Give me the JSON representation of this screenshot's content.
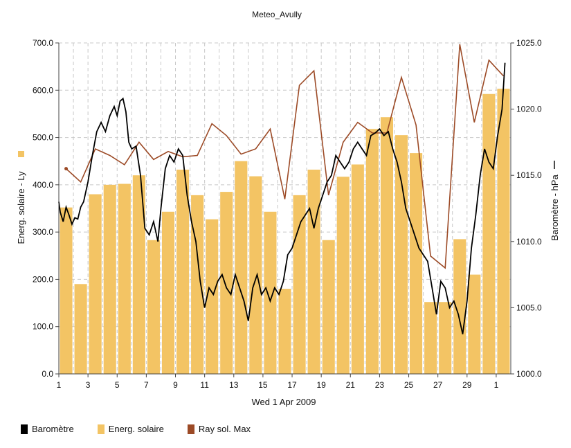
{
  "colors": {
    "bar": "#f3c464",
    "bar_edge": "#e8b24a",
    "barometer": "#000000",
    "ray": "#9c4a26",
    "grid": "#c8c8c8"
  },
  "chart_data": {
    "type": "bar",
    "title": "Meteo_Avully",
    "xlabel": "Wed 1 Apr 2009",
    "ylabel": "Energ. solaire - Ly",
    "y2label": "Baromètre - hPa",
    "ylim": [
      0,
      700
    ],
    "y2lim": [
      1000,
      1025
    ],
    "yticks": [
      "0.0",
      "100.0",
      "200.0",
      "300.0",
      "400.0",
      "500.0",
      "600.0",
      "700.0"
    ],
    "y2ticks": [
      "1000.0",
      "1005.0",
      "1010.0",
      "1015.0",
      "1020.0",
      "1025.0"
    ],
    "xticks": [
      "1",
      "3",
      "5",
      "7",
      "9",
      "11",
      "13",
      "15",
      "17",
      "19",
      "21",
      "23",
      "25",
      "27",
      "29",
      "1"
    ],
    "grid": true,
    "legend_position": "bottom-left",
    "series": [
      {
        "name": "Baromètre",
        "axis": "right",
        "kind": "line",
        "x": [
          1.0,
          1.1,
          1.3,
          1.5,
          1.7,
          1.9,
          2.1,
          2.3,
          2.5,
          2.7,
          3.0,
          3.3,
          3.6,
          3.9,
          4.2,
          4.5,
          4.8,
          5.0,
          5.2,
          5.4,
          5.6,
          5.8,
          6.0,
          6.3,
          6.6,
          6.9,
          7.2,
          7.5,
          7.8,
          8.0,
          8.3,
          8.6,
          8.9,
          9.2,
          9.5,
          9.8,
          10.1,
          10.4,
          10.7,
          11.0,
          11.3,
          11.6,
          11.9,
          12.2,
          12.5,
          12.8,
          13.1,
          13.4,
          13.7,
          14.0,
          14.3,
          14.6,
          14.9,
          15.2,
          15.5,
          15.8,
          16.1,
          16.4,
          16.7,
          17.0,
          17.3,
          17.6,
          17.9,
          18.2,
          18.5,
          18.8,
          19.1,
          19.4,
          19.7,
          20.0,
          20.3,
          20.6,
          20.9,
          21.2,
          21.5,
          21.8,
          22.1,
          22.4,
          22.7,
          23.0,
          23.3,
          23.6,
          23.9,
          24.2,
          24.5,
          24.8,
          25.1,
          25.4,
          25.7,
          26.0,
          26.3,
          26.6,
          26.9,
          27.2,
          27.5,
          27.8,
          28.1,
          28.4,
          28.7,
          29.0,
          29.3,
          29.6,
          29.9,
          30.2,
          30.5,
          30.8,
          31.1,
          31.4,
          31.6
        ],
        "values": [
          1013.0,
          1012.2,
          1011.5,
          1012.6,
          1012.0,
          1011.3,
          1011.8,
          1011.7,
          1012.6,
          1013.0,
          1014.5,
          1016.5,
          1018.3,
          1019.0,
          1018.3,
          1019.5,
          1020.2,
          1019.5,
          1020.6,
          1020.8,
          1019.8,
          1017.5,
          1017.0,
          1017.2,
          1015.0,
          1011.0,
          1010.5,
          1011.5,
          1010.0,
          1012.5,
          1015.5,
          1016.5,
          1016.0,
          1017.0,
          1016.5,
          1013.5,
          1011.5,
          1010.0,
          1007.0,
          1005.0,
          1006.5,
          1006.0,
          1007.0,
          1007.5,
          1006.5,
          1006.0,
          1007.5,
          1006.5,
          1005.5,
          1004.0,
          1006.5,
          1007.5,
          1006.0,
          1006.5,
          1005.5,
          1006.5,
          1006.0,
          1007.0,
          1009.0,
          1009.5,
          1010.5,
          1011.5,
          1012.0,
          1012.5,
          1011.0,
          1012.5,
          1013.5,
          1014.5,
          1015.0,
          1016.5,
          1016.0,
          1015.5,
          1016.0,
          1017.0,
          1017.5,
          1017.0,
          1016.5,
          1018.0,
          1018.2,
          1018.5,
          1018.0,
          1018.3,
          1017.0,
          1016.0,
          1014.5,
          1012.5,
          1011.5,
          1010.5,
          1009.5,
          1009.0,
          1008.5,
          1006.5,
          1004.5,
          1007.0,
          1006.5,
          1005.0,
          1005.5,
          1004.5,
          1003.0,
          1005.5,
          1009.5,
          1012.0,
          1015.0,
          1017.0,
          1016.0,
          1015.5,
          1018.0,
          1020.0,
          1023.5
        ]
      },
      {
        "name": "Energ. solaire",
        "axis": "left",
        "kind": "bar",
        "x": [
          1,
          2,
          3,
          4,
          5,
          6,
          7,
          8,
          9,
          10,
          11,
          12,
          13,
          14,
          15,
          16,
          17,
          18,
          19,
          20,
          21,
          22,
          23,
          24,
          25,
          26,
          27,
          28,
          29,
          30,
          31
        ],
        "values": [
          352,
          190,
          380,
          400,
          402,
          420,
          283,
          343,
          432,
          378,
          327,
          385,
          450,
          418,
          343,
          180,
          378,
          432,
          283,
          417,
          443,
          518,
          543,
          505,
          467,
          152,
          152,
          285,
          210,
          592,
          603
        ]
      },
      {
        "name": "Ray sol. Max",
        "axis": "right",
        "kind": "line",
        "x": [
          1.5,
          2.5,
          3.5,
          4.5,
          5.5,
          6.5,
          7.5,
          8.5,
          9.5,
          10.5,
          11.5,
          12.5,
          13.5,
          14.5,
          15.5,
          16.5,
          17.5,
          18.5,
          19.5,
          20.5,
          21.5,
          22.5,
          23.5,
          24.5,
          25.5,
          26.5,
          27.5,
          28.5,
          29.5,
          30.5,
          31.5
        ],
        "values": [
          1015.5,
          1014.5,
          1017.0,
          1016.5,
          1015.8,
          1017.5,
          1016.2,
          1016.8,
          1016.4,
          1016.5,
          1018.9,
          1018.0,
          1016.6,
          1017.0,
          1018.5,
          1013.2,
          1021.8,
          1022.9,
          1013.5,
          1017.5,
          1019.0,
          1018.2,
          1018.2,
          1022.4,
          1018.8,
          1008.9,
          1008.0,
          1024.9,
          1019.0,
          1023.7,
          1022.5
        ]
      }
    ]
  }
}
